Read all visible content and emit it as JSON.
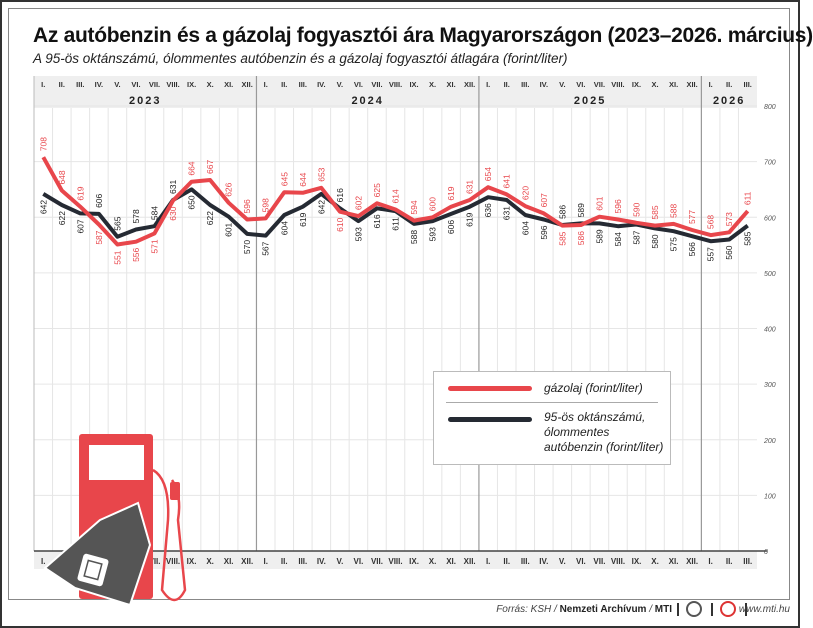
{
  "title": "Az autóbenzin és a gázolaj fogyasztói ára Magyarországon (2023–2026. március)",
  "subtitle": "A 95-ös oktánszámú, ólommentes autóbenzin és a gázolaj fogyasztói átlagára (forint/liter)",
  "source": {
    "prefix": "Forrás: KSH / ",
    "bold1": "Nemzeti Archívum",
    "sep": " / ",
    "bold2": "MTI",
    "website": "www.mti.hu"
  },
  "colors": {
    "diesel": "#e8464b",
    "petrol": "#252a33",
    "header_bg": "#efefef"
  },
  "icons": [
    "fuel-pump-icon",
    "price-tag-icon",
    "jerrycan-icon"
  ],
  "chart_data": {
    "type": "line",
    "years": [
      {
        "label": "2023",
        "months": 12
      },
      {
        "label": "2024",
        "months": 12
      },
      {
        "label": "2025",
        "months": 12
      },
      {
        "label": "2026",
        "months": 3
      }
    ],
    "month_labels": [
      "I.",
      "II.",
      "III.",
      "IV.",
      "V.",
      "VI.",
      "VII.",
      "VIII.",
      "IX.",
      "X.",
      "XI.",
      "XII."
    ],
    "ylim": [
      0,
      800
    ],
    "yticks": [
      0,
      100,
      200,
      300,
      400,
      500,
      600,
      700,
      800
    ],
    "grid": true,
    "legend_position": "right-middle",
    "series": [
      {
        "name": "gázolaj (forint/liter)",
        "color": "#e8464b",
        "values": [
          708,
          648,
          619,
          587,
          551,
          556,
          571,
          630,
          664,
          667,
          626,
          596,
          598,
          645,
          644,
          653,
          610,
          602,
          625,
          614,
          594,
          600,
          619,
          631,
          654,
          641,
          620,
          607,
          585,
          586,
          601,
          596,
          590,
          585,
          588,
          577,
          568,
          573,
          611
        ]
      },
      {
        "name": "95-ös oktánszámú, ólommentes autóbenzin (forint/liter)",
        "color": "#252a33",
        "values": [
          642,
          622,
          607,
          606,
          565,
          578,
          584,
          631,
          650,
          622,
          601,
          570,
          567,
          604,
          619,
          642,
          616,
          593,
          616,
          611,
          588,
          593,
          606,
          619,
          636,
          631,
          604,
          596,
          586,
          589,
          589,
          584,
          587,
          580,
          575,
          566,
          557,
          560,
          585
        ]
      }
    ]
  }
}
